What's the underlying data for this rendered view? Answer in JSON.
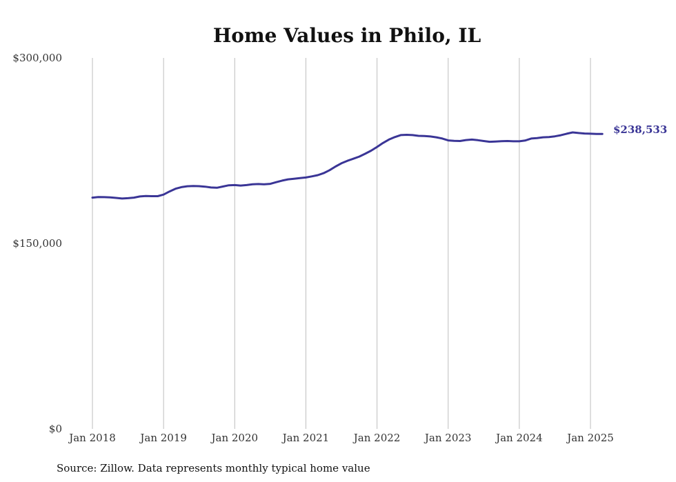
{
  "chart_data": {
    "type": "line",
    "title": "Home Values in Philo, IL",
    "source": "Source: Zillow. Data represents monthly typical home value",
    "ylim": [
      0,
      300000
    ],
    "y_ticks": [
      {
        "value": 0,
        "label": "$0"
      },
      {
        "value": 150000,
        "label": "$150,000"
      },
      {
        "value": 300000,
        "label": "$300,000"
      }
    ],
    "x_ticks": [
      {
        "value": 2018,
        "label": "Jan 2018"
      },
      {
        "value": 2019,
        "label": "Jan 2019"
      },
      {
        "value": 2020,
        "label": "Jan 2020"
      },
      {
        "value": 2021,
        "label": "Jan 2021"
      },
      {
        "value": 2022,
        "label": "Jan 2022"
      },
      {
        "value": 2023,
        "label": "Jan 2023"
      },
      {
        "value": 2024,
        "label": "Jan 2024"
      },
      {
        "value": 2025,
        "label": "Jan 2025"
      }
    ],
    "xlim": [
      2018,
      2025.167
    ],
    "grid": "vertical",
    "line_color": "#3a3596",
    "end_label": "$238,533",
    "series": [
      {
        "x": [
          2018.0,
          2018.083,
          2018.167,
          2018.25,
          2018.333,
          2018.417,
          2018.5,
          2018.583,
          2018.667,
          2018.75,
          2018.833,
          2018.917,
          2019.0,
          2019.083,
          2019.167,
          2019.25,
          2019.333,
          2019.417,
          2019.5,
          2019.583,
          2019.667,
          2019.75,
          2019.833,
          2019.917,
          2020.0,
          2020.083,
          2020.167,
          2020.25,
          2020.333,
          2020.417,
          2020.5,
          2020.583,
          2020.667,
          2020.75,
          2020.833,
          2020.917,
          2021.0,
          2021.083,
          2021.167,
          2021.25,
          2021.333,
          2021.417,
          2021.5,
          2021.583,
          2021.667,
          2021.75,
          2021.833,
          2021.917,
          2022.0,
          2022.083,
          2022.167,
          2022.25,
          2022.333,
          2022.417,
          2022.5,
          2022.583,
          2022.667,
          2022.75,
          2022.833,
          2022.917,
          2023.0,
          2023.083,
          2023.167,
          2023.25,
          2023.333,
          2023.417,
          2023.5,
          2023.583,
          2023.667,
          2023.75,
          2023.833,
          2023.917,
          2024.0,
          2024.083,
          2024.167,
          2024.25,
          2024.333,
          2024.417,
          2024.5,
          2024.583,
          2024.667,
          2024.75,
          2024.833,
          2024.917,
          2025.0,
          2025.083,
          2025.167
        ],
        "values": [
          187000,
          187500,
          187400,
          187200,
          186800,
          186300,
          186600,
          187000,
          188000,
          188300,
          188200,
          188200,
          189500,
          192000,
          194200,
          195500,
          196200,
          196400,
          196300,
          195900,
          195200,
          195000,
          196000,
          197000,
          197200,
          196800,
          197200,
          197800,
          198000,
          197800,
          198200,
          199500,
          200800,
          201800,
          202300,
          202800,
          203300,
          204200,
          205200,
          206800,
          209200,
          212200,
          214800,
          216800,
          218500,
          220200,
          222500,
          225000,
          228000,
          231200,
          234000,
          236000,
          237600,
          237800,
          237600,
          237000,
          236800,
          236500,
          235800,
          234800,
          233300,
          233000,
          232800,
          233600,
          234000,
          233500,
          232800,
          232200,
          232400,
          232700,
          232800,
          232600,
          232600,
          233200,
          234800,
          235200,
          235800,
          236000,
          236600,
          237500,
          238700,
          239800,
          239300,
          238900,
          238700,
          238533,
          238533
        ]
      }
    ]
  }
}
